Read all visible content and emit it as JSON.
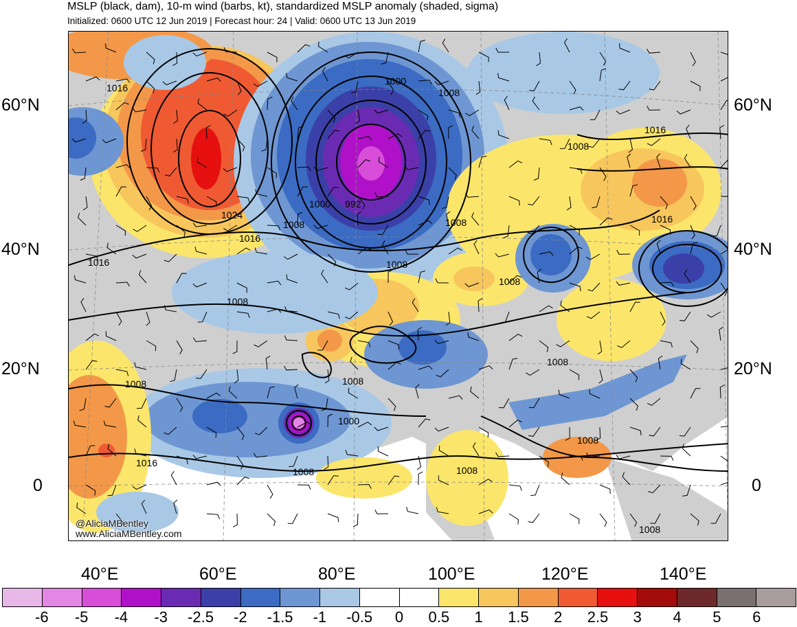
{
  "header": {
    "title": "MSLP (black, dam), 10-m wind (barbs, kt), standardized MSLP anomaly (shaded, sigma)",
    "subtitle": "Initialized: 0600 UTC 12 Jun 2019 | Forecast hour: 24 | Valid: 0600 UTC 13 Jun 2019"
  },
  "map": {
    "lat_labels_left": [
      "60°N",
      "40°N",
      "20°N",
      "0"
    ],
    "lat_labels_right": [
      "60°N",
      "40°N",
      "20°N",
      "0"
    ],
    "lon_labels": [
      "40°E",
      "60°E",
      "80°E",
      "100°E",
      "120°E",
      "140°E"
    ],
    "isobar_labels": [
      "1016",
      "1024",
      "1016",
      "1016",
      "1008",
      "1000",
      "992",
      "1000",
      "1008",
      "1008",
      "1008",
      "1008",
      "1016",
      "1016",
      "1008",
      "1008",
      "1008",
      "1008",
      "1008",
      "1000",
      "1008",
      "1016",
      "1008",
      "1008",
      "1008"
    ],
    "credits": [
      "@AliciaMBentley",
      "www.AliciaMBentley.com"
    ]
  },
  "colorbar": {
    "labels": [
      "-6",
      "-5",
      "-4",
      "-3",
      "-2.5",
      "-2",
      "-1.5",
      "-1",
      "-0.5",
      "0",
      "0.5",
      "1",
      "1.5",
      "2",
      "2.5",
      "3",
      "4",
      "5",
      "6"
    ],
    "colors": [
      "#e8b8e8",
      "#e486e4",
      "#d94ed9",
      "#b011c8",
      "#6a2bb2",
      "#3b40a8",
      "#3b6bc2",
      "#6e96d2",
      "#a8c8e6",
      "#ffffff",
      "#ffffff",
      "#fbe66b",
      "#f7c65c",
      "#f39848",
      "#ef5a33",
      "#e61010",
      "#a40b0b",
      "#6e2a2a",
      "#7a7070",
      "#a89c9c"
    ]
  }
}
